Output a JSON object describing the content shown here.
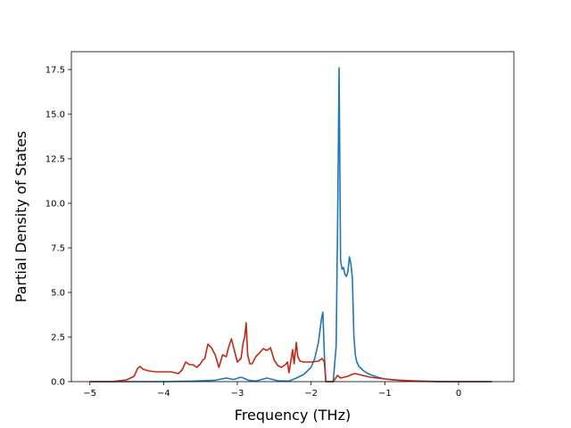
{
  "chart_data": {
    "type": "line",
    "title": "",
    "xlabel": "Frequency (THz)",
    "ylabel": "Partial Density of States",
    "xlim": [
      -5.25,
      0.75
    ],
    "ylim": [
      0,
      18.5
    ],
    "xticks": [
      -5,
      -4,
      -3,
      -2,
      -1,
      0
    ],
    "xtick_labels": [
      "−5",
      "−4",
      "−3",
      "−2",
      "−1",
      "0"
    ],
    "yticks": [
      0,
      2.5,
      5,
      7.5,
      10,
      12.5,
      15,
      17.5
    ],
    "ytick_labels": [
      "0.0",
      "2.5",
      "5.0",
      "7.5",
      "10.0",
      "12.5",
      "15.0",
      "17.5"
    ],
    "grid": false,
    "series": [
      {
        "color": "#1f77b4",
        "x": [
          -5.0,
          -4.5,
          -4.0,
          -3.6,
          -3.3,
          -3.15,
          -3.05,
          -2.95,
          -2.85,
          -2.75,
          -2.6,
          -2.45,
          -2.3,
          -2.2,
          -2.1,
          -2.0,
          -1.95,
          -1.9,
          -1.86,
          -1.84,
          -1.82,
          -1.8,
          -1.7,
          -1.66,
          -1.64,
          -1.62,
          -1.61,
          -1.6,
          -1.58,
          -1.56,
          -1.54,
          -1.52,
          -1.5,
          -1.48,
          -1.46,
          -1.44,
          -1.42,
          -1.4,
          -1.38,
          -1.35,
          -1.3,
          -1.25,
          -1.2,
          -1.1,
          -1.0,
          -0.9,
          -0.7,
          -0.5,
          -0.3,
          0.0,
          0.3,
          0.45
        ],
        "y": [
          0.0,
          0.0,
          0.0,
          0.03,
          0.08,
          0.2,
          0.12,
          0.25,
          0.08,
          0.03,
          0.2,
          0.05,
          0.03,
          0.2,
          0.4,
          0.8,
          1.3,
          2.2,
          3.5,
          3.9,
          1.5,
          0.0,
          0.0,
          2.0,
          9.0,
          17.6,
          12.0,
          6.8,
          6.3,
          6.4,
          6.0,
          5.9,
          6.2,
          7.0,
          6.6,
          5.8,
          2.6,
          1.5,
          1.1,
          0.85,
          0.65,
          0.5,
          0.4,
          0.25,
          0.15,
          0.1,
          0.05,
          0.03,
          0.01,
          0.0,
          0.0,
          0.0
        ]
      },
      {
        "color": "#c0291a",
        "x": [
          -5.0,
          -4.7,
          -4.5,
          -4.4,
          -4.35,
          -4.32,
          -4.28,
          -4.2,
          -4.1,
          -4.0,
          -3.9,
          -3.85,
          -3.8,
          -3.75,
          -3.7,
          -3.65,
          -3.6,
          -3.55,
          -3.5,
          -3.47,
          -3.44,
          -3.4,
          -3.35,
          -3.3,
          -3.25,
          -3.2,
          -3.15,
          -3.12,
          -3.08,
          -3.0,
          -2.95,
          -2.92,
          -2.9,
          -2.88,
          -2.86,
          -2.83,
          -2.8,
          -2.75,
          -2.7,
          -2.65,
          -2.6,
          -2.55,
          -2.5,
          -2.45,
          -2.4,
          -2.35,
          -2.32,
          -2.3,
          -2.28,
          -2.25,
          -2.23,
          -2.2,
          -2.18,
          -2.15,
          -2.1,
          -2.0,
          -1.9,
          -1.85,
          -1.82,
          -1.8,
          -1.7,
          -1.64,
          -1.6,
          -1.5,
          -1.45,
          -1.4,
          -1.2,
          -1.0,
          -0.8,
          -0.5,
          -0.3,
          0.0,
          0.45
        ],
        "y": [
          0.0,
          0.0,
          0.1,
          0.3,
          0.75,
          0.85,
          0.7,
          0.6,
          0.55,
          0.55,
          0.55,
          0.5,
          0.45,
          0.65,
          1.1,
          0.95,
          0.95,
          0.8,
          1.0,
          1.2,
          1.3,
          2.1,
          1.9,
          1.5,
          0.8,
          1.5,
          1.4,
          1.9,
          2.4,
          1.1,
          1.3,
          2.2,
          2.5,
          3.3,
          1.5,
          1.0,
          1.0,
          1.4,
          1.6,
          1.85,
          1.75,
          1.9,
          1.2,
          0.9,
          0.8,
          0.95,
          1.1,
          0.5,
          1.0,
          1.8,
          1.0,
          2.2,
          1.4,
          1.15,
          1.1,
          1.1,
          1.15,
          1.3,
          1.1,
          0.0,
          0.0,
          0.35,
          0.2,
          0.3,
          0.4,
          0.45,
          0.25,
          0.15,
          0.08,
          0.02,
          0.0,
          0.0,
          0.0
        ]
      }
    ]
  }
}
